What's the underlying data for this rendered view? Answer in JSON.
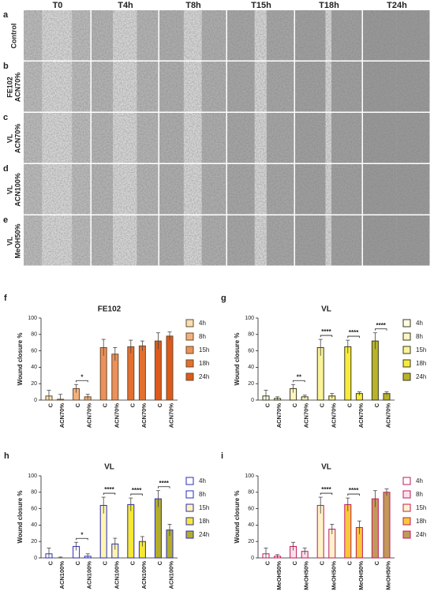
{
  "image_grid": {
    "columns": [
      "T0",
      "T4h",
      "T8h",
      "T15h",
      "T18h",
      "T24h"
    ],
    "rows": [
      {
        "letter": "a",
        "label": [
          "Control"
        ]
      },
      {
        "letter": "b",
        "label": [
          "FE102",
          "ACN70%"
        ]
      },
      {
        "letter": "c",
        "label": [
          "VL",
          "ACN70%"
        ]
      },
      {
        "letter": "d",
        "label": [
          "VL",
          "ACN100%"
        ]
      },
      {
        "letter": "e",
        "label": [
          "VL",
          "MeOH50%"
        ]
      }
    ]
  },
  "chart_data": [
    {
      "type": "bar",
      "letter": "f",
      "title": "FE102",
      "y_label": "Wound closure %",
      "categories": [
        "C",
        "ACN70%"
      ],
      "ylim": [
        0,
        100
      ],
      "yticks": [
        0,
        20,
        40,
        60,
        80,
        100
      ],
      "series": [
        {
          "name": "4h",
          "color": "#f3e0b5",
          "edge": "#6b4a2a",
          "values": [
            5,
            1
          ],
          "errors": [
            7,
            6
          ]
        },
        {
          "name": "8h",
          "color": "#f2b27d",
          "edge": "#6b4a2a",
          "values": [
            14,
            4
          ],
          "errors": [
            5,
            3
          ],
          "significance": "*"
        },
        {
          "name": "15h",
          "color": "#eb9159",
          "edge": "#6b4a2a",
          "values": [
            64,
            56
          ],
          "errors": [
            10,
            8
          ]
        },
        {
          "name": "18h",
          "color": "#e4702f",
          "edge": "#6b4a2a",
          "values": [
            65,
            66
          ],
          "errors": [
            8,
            6
          ]
        },
        {
          "name": "24h",
          "color": "#dd5a1c",
          "edge": "#6b4a2a",
          "values": [
            72,
            78
          ],
          "errors": [
            10,
            5
          ]
        }
      ]
    },
    {
      "type": "bar",
      "letter": "g",
      "title": "VL",
      "y_label": "Wound closure %",
      "categories": [
        "C",
        "ACN70%"
      ],
      "ylim": [
        0,
        100
      ],
      "yticks": [
        0,
        20,
        40,
        60,
        80,
        100
      ],
      "series": [
        {
          "name": "4h",
          "color": "#fffde8",
          "edge": "#3a3a1a",
          "values": [
            5,
            2
          ],
          "errors": [
            7,
            2
          ]
        },
        {
          "name": "8h",
          "color": "#fff5c4",
          "edge": "#3a3a1a",
          "values": [
            14,
            4
          ],
          "errors": [
            5,
            2
          ],
          "significance": "**"
        },
        {
          "name": "15h",
          "color": "#fbf39a",
          "edge": "#3a3a1a",
          "values": [
            64,
            5
          ],
          "errors": [
            10,
            3
          ],
          "significance": "****"
        },
        {
          "name": "18h",
          "color": "#f8ec3a",
          "edge": "#3a3a1a",
          "values": [
            65,
            8
          ],
          "errors": [
            8,
            2
          ],
          "significance": "****"
        },
        {
          "name": "24h",
          "color": "#b8b32a",
          "edge": "#3a3a1a",
          "values": [
            72,
            8
          ],
          "errors": [
            10,
            2
          ],
          "significance": "****"
        }
      ]
    },
    {
      "type": "bar",
      "letter": "h",
      "title": "VL",
      "y_label": "Wound closure %",
      "categories": [
        "C",
        "ACN100%"
      ],
      "ylim": [
        0,
        100
      ],
      "yticks": [
        0,
        20,
        40,
        60,
        80,
        100
      ],
      "series": [
        {
          "name": "4h",
          "color": "#ffffff",
          "edge": "#2b2bb8",
          "values": [
            5,
            0
          ],
          "errors": [
            7,
            1
          ]
        },
        {
          "name": "8h",
          "color": "#ffffff",
          "edge": "#2b2bb8",
          "values": [
            14,
            2
          ],
          "errors": [
            5,
            3
          ],
          "significance": "*"
        },
        {
          "name": "15h",
          "color": "#fff5b0",
          "edge": "#2b2bb8",
          "values": [
            64,
            17
          ],
          "errors": [
            10,
            7
          ],
          "significance": "****"
        },
        {
          "name": "18h",
          "color": "#f6e833",
          "edge": "#2b2bb8",
          "values": [
            65,
            20
          ],
          "errors": [
            8,
            6
          ],
          "significance": "****"
        },
        {
          "name": "24h",
          "color": "#b3ae2a",
          "edge": "#2b2bb8",
          "values": [
            72,
            34
          ],
          "errors": [
            10,
            7
          ],
          "significance": "****"
        }
      ]
    },
    {
      "type": "bar",
      "letter": "i",
      "title": "VL",
      "y_label": "Wound closure %",
      "categories": [
        "C",
        "MeOH50%"
      ],
      "ylim": [
        0,
        100
      ],
      "yticks": [
        0,
        20,
        40,
        60,
        80,
        100
      ],
      "series": [
        {
          "name": "4h",
          "color": "#ffffff",
          "edge": "#c2185b",
          "values": [
            5,
            2
          ],
          "errors": [
            7,
            2
          ]
        },
        {
          "name": "8h",
          "color": "#fbe1ea",
          "edge": "#c2185b",
          "values": [
            14,
            8
          ],
          "errors": [
            5,
            4
          ]
        },
        {
          "name": "15h",
          "color": "#fdf3c8",
          "edge": "#c2185b",
          "values": [
            64,
            35
          ],
          "errors": [
            10,
            6
          ],
          "significance": "****"
        },
        {
          "name": "18h",
          "color": "#f5c938",
          "edge": "#c2185b",
          "values": [
            65,
            37
          ],
          "errors": [
            8,
            8
          ],
          "significance": "****"
        },
        {
          "name": "24h",
          "color": "#c09a5a",
          "edge": "#c2185b",
          "values": [
            72,
            80
          ],
          "errors": [
            10,
            4
          ]
        }
      ]
    }
  ]
}
